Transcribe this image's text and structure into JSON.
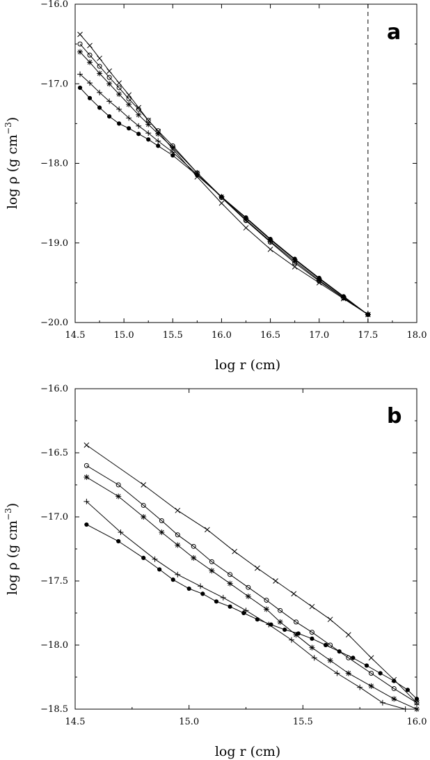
{
  "chart_data": [
    {
      "type": "line",
      "panel": "a",
      "xlabel": "log r (cm)",
      "ylabel": "log ρ (g cm⁻³)",
      "xlim": [
        14.5,
        18.0
      ],
      "ylim": [
        -20.0,
        -16.0
      ],
      "xticks": [
        14.5,
        15.0,
        15.5,
        16.0,
        16.5,
        17.0,
        17.5,
        18.0
      ],
      "yticks": [
        -20.0,
        -19.0,
        -18.0,
        -17.0,
        -16.0
      ],
      "xtick_labels": [
        "14.5",
        "15.0",
        "15.5",
        "16.0",
        "16.5",
        "17.0",
        "17.5",
        "18.0"
      ],
      "ytick_labels": [
        "−20.0",
        "−19.0",
        "−18.0",
        "−17.0",
        "−16.0"
      ],
      "vline": 17.5,
      "series": [
        {
          "marker": "x",
          "x": [
            14.55,
            14.65,
            14.75,
            14.85,
            14.95,
            15.05,
            15.15,
            15.25,
            15.35,
            15.5,
            15.75,
            16.0,
            16.25,
            16.5,
            16.75,
            17.0,
            17.25,
            17.5
          ],
          "y": [
            -16.38,
            -16.52,
            -16.68,
            -16.84,
            -16.99,
            -17.14,
            -17.3,
            -17.46,
            -17.6,
            -17.82,
            -18.17,
            -18.5,
            -18.81,
            -19.08,
            -19.3,
            -19.5,
            -19.7,
            -19.9
          ]
        },
        {
          "marker": "o",
          "x": [
            14.55,
            14.65,
            14.75,
            14.85,
            14.95,
            15.05,
            15.15,
            15.25,
            15.35,
            15.5,
            15.75,
            16.0,
            16.25,
            16.5,
            16.75,
            17.0,
            17.25,
            17.5
          ],
          "y": [
            -16.5,
            -16.64,
            -16.78,
            -16.92,
            -17.05,
            -17.19,
            -17.32,
            -17.46,
            -17.59,
            -17.78,
            -18.12,
            -18.43,
            -18.72,
            -18.99,
            -19.25,
            -19.48,
            -19.69,
            -19.9
          ]
        },
        {
          "marker": "*",
          "x": [
            14.55,
            14.65,
            14.75,
            14.85,
            14.95,
            15.05,
            15.15,
            15.25,
            15.35,
            15.5,
            15.75,
            16.0,
            16.25,
            16.5,
            16.75,
            17.0,
            17.25,
            17.5
          ],
          "y": [
            -16.6,
            -16.73,
            -16.87,
            -17.0,
            -17.13,
            -17.26,
            -17.39,
            -17.51,
            -17.63,
            -17.8,
            -18.12,
            -18.42,
            -18.71,
            -18.98,
            -19.23,
            -19.47,
            -19.69,
            -19.9
          ]
        },
        {
          "marker": "+",
          "x": [
            14.55,
            14.65,
            14.75,
            14.85,
            14.95,
            15.05,
            15.15,
            15.25,
            15.35,
            15.5,
            15.75,
            16.0,
            16.25,
            16.5,
            16.75,
            17.0,
            17.25,
            17.5
          ],
          "y": [
            -16.88,
            -16.99,
            -17.11,
            -17.22,
            -17.32,
            -17.43,
            -17.53,
            -17.62,
            -17.72,
            -17.86,
            -18.14,
            -18.42,
            -18.69,
            -18.96,
            -19.21,
            -19.45,
            -19.68,
            -19.9
          ]
        },
        {
          "marker": "dot",
          "x": [
            14.55,
            14.65,
            14.75,
            14.85,
            14.95,
            15.05,
            15.15,
            15.25,
            15.35,
            15.5,
            15.75,
            16.0,
            16.25,
            16.5,
            16.75,
            17.0,
            17.25,
            17.5
          ],
          "y": [
            -17.05,
            -17.18,
            -17.3,
            -17.41,
            -17.5,
            -17.56,
            -17.63,
            -17.7,
            -17.78,
            -17.9,
            -18.15,
            -18.42,
            -18.68,
            -18.95,
            -19.2,
            -19.44,
            -19.67,
            -19.9
          ]
        }
      ]
    },
    {
      "type": "line",
      "panel": "b",
      "xlabel": "log r (cm)",
      "ylabel": "log ρ (g cm⁻³)",
      "xlim": [
        14.5,
        16.0
      ],
      "ylim": [
        -18.5,
        -16.0
      ],
      "xticks": [
        14.5,
        15.0,
        15.5,
        16.0
      ],
      "yticks": [
        -18.5,
        -18.0,
        -17.5,
        -17.0,
        -16.5,
        -16.0
      ],
      "xtick_labels": [
        "14.5",
        "15.0",
        "15.5",
        "16.0"
      ],
      "ytick_labels": [
        "−18.5",
        "−18.0",
        "−17.5",
        "−17.0",
        "−16.5",
        "−16.0"
      ],
      "series": [
        {
          "marker": "x",
          "x": [
            14.55,
            14.8,
            14.95,
            15.08,
            15.2,
            15.3,
            15.38,
            15.46,
            15.54,
            15.62,
            15.7,
            15.8,
            15.9,
            16.0
          ],
          "y": [
            -16.44,
            -16.75,
            -16.95,
            -17.1,
            -17.27,
            -17.4,
            -17.5,
            -17.6,
            -17.7,
            -17.8,
            -17.92,
            -18.1,
            -18.27,
            -18.45
          ]
        },
        {
          "marker": "o",
          "x": [
            14.55,
            14.69,
            14.8,
            14.88,
            14.95,
            15.02,
            15.1,
            15.18,
            15.26,
            15.34,
            15.4,
            15.47,
            15.54,
            15.62,
            15.7,
            15.8,
            15.9,
            16.0
          ],
          "y": [
            -16.6,
            -16.75,
            -16.91,
            -17.03,
            -17.14,
            -17.23,
            -17.35,
            -17.45,
            -17.55,
            -17.65,
            -17.73,
            -17.82,
            -17.9,
            -18.0,
            -18.1,
            -18.22,
            -18.34,
            -18.45
          ]
        },
        {
          "marker": "*",
          "x": [
            14.55,
            14.69,
            14.8,
            14.88,
            14.95,
            15.02,
            15.1,
            15.18,
            15.26,
            15.34,
            15.4,
            15.47,
            15.54,
            15.62,
            15.7,
            15.8,
            15.9,
            16.0
          ],
          "y": [
            -16.69,
            -16.84,
            -17.0,
            -17.12,
            -17.22,
            -17.32,
            -17.42,
            -17.52,
            -17.62,
            -17.72,
            -17.82,
            -17.92,
            -18.02,
            -18.12,
            -18.22,
            -18.32,
            -18.42,
            -18.5
          ]
        },
        {
          "marker": "+",
          "x": [
            14.55,
            14.7,
            14.85,
            14.95,
            15.05,
            15.15,
            15.25,
            15.35,
            15.45,
            15.55,
            15.65,
            15.75,
            15.85,
            15.95
          ],
          "y": [
            -16.88,
            -17.12,
            -17.33,
            -17.45,
            -17.54,
            -17.63,
            -17.73,
            -17.84,
            -17.96,
            -18.1,
            -18.22,
            -18.33,
            -18.45,
            -18.5
          ]
        },
        {
          "marker": "dot",
          "x": [
            14.55,
            14.69,
            14.8,
            14.87,
            14.93,
            15.0,
            15.06,
            15.12,
            15.18,
            15.24,
            15.3,
            15.36,
            15.42,
            15.48,
            15.54,
            15.6,
            15.66,
            15.72,
            15.78,
            15.84,
            15.9,
            15.96,
            16.0
          ],
          "y": [
            -17.06,
            -17.19,
            -17.32,
            -17.41,
            -17.49,
            -17.56,
            -17.6,
            -17.66,
            -17.7,
            -17.75,
            -17.8,
            -17.84,
            -17.88,
            -17.91,
            -17.95,
            -18.0,
            -18.05,
            -18.1,
            -18.16,
            -18.22,
            -18.28,
            -18.35,
            -18.42
          ]
        }
      ]
    }
  ],
  "panels": [
    {
      "letter": "a",
      "xlabel": "log r (cm)",
      "ylabel_main": "log ρ (g cm",
      "ylabel_sup": "−3",
      "ylabel_close": ")"
    },
    {
      "letter": "b",
      "xlabel": "log r (cm)",
      "ylabel_main": "log ρ (g cm",
      "ylabel_sup": "−3",
      "ylabel_close": ")"
    }
  ]
}
